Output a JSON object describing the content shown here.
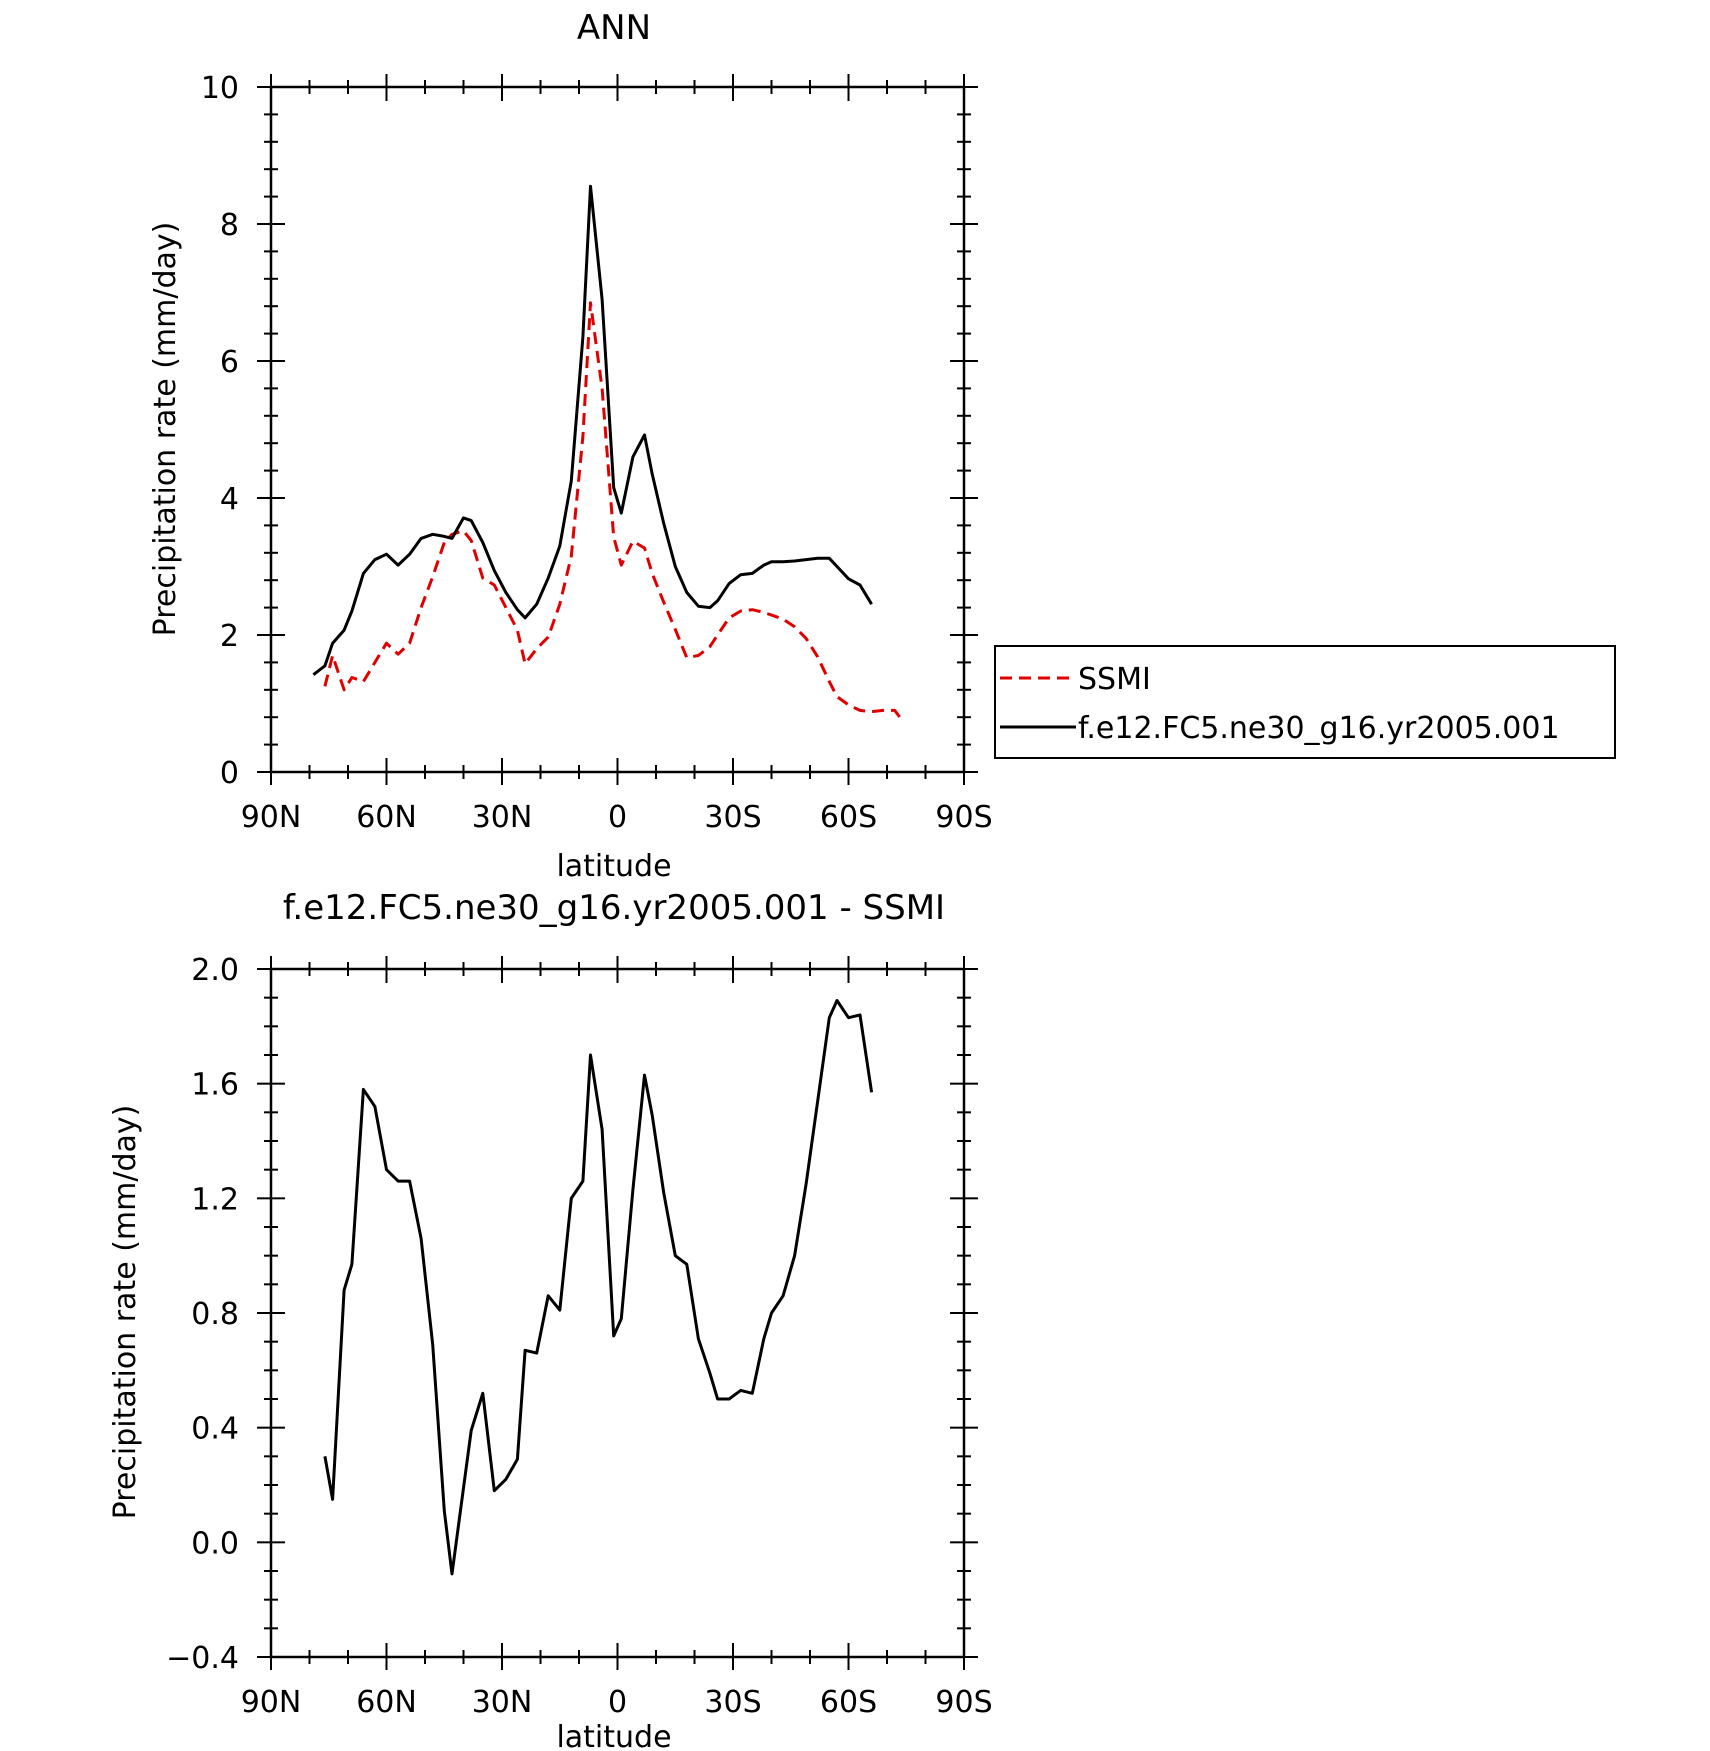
{
  "chart_data": [
    {
      "type": "line",
      "title": "ANN",
      "xlabel": "latitude",
      "ylabel": "Precipitation rate (mm/day)",
      "xlim": [
        90,
        -90
      ],
      "ylim": [
        0,
        10
      ],
      "x_ticks": [
        90,
        60,
        30,
        0,
        -30,
        -60,
        -90
      ],
      "x_tick_labels": [
        "90N",
        "60N",
        "30N",
        "0",
        "30S",
        "60S",
        "90S"
      ],
      "y_ticks": [
        0,
        2,
        4,
        6,
        8,
        10
      ],
      "y_tick_labels": [
        "0",
        "2",
        "4",
        "6",
        "8",
        "10"
      ],
      "grid": false,
      "legend": "right",
      "series": [
        {
          "name": "SSMI",
          "color": "#e00000",
          "dash": "dashed",
          "x": [
            76,
            74,
            71,
            69,
            66,
            63,
            60,
            57,
            54,
            51,
            48,
            45,
            43,
            40,
            38,
            35,
            32,
            29,
            26,
            24,
            21,
            18,
            15,
            12,
            9,
            7,
            4,
            1,
            -1,
            -4,
            -7,
            -9,
            -12,
            -15,
            -18,
            -21,
            -24,
            -26,
            -29,
            -32,
            -35,
            -38,
            -40,
            -43,
            -46,
            -49,
            -52,
            -55,
            -57,
            -60,
            -63,
            -66,
            -69,
            -72,
            -74
          ],
          "y": [
            1.25,
            1.7,
            1.2,
            1.38,
            1.32,
            1.6,
            1.88,
            1.72,
            1.88,
            2.4,
            2.85,
            3.35,
            3.47,
            3.52,
            3.38,
            2.83,
            2.73,
            2.4,
            2.07,
            1.58,
            1.8,
            1.97,
            2.45,
            3.15,
            4.9,
            6.85,
            5.6,
            3.43,
            3.02,
            3.37,
            3.27,
            2.9,
            2.48,
            2.08,
            1.67,
            1.7,
            1.83,
            2.0,
            2.25,
            2.35,
            2.37,
            2.33,
            2.29,
            2.23,
            2.12,
            1.95,
            1.68,
            1.32,
            1.1,
            0.98,
            0.9,
            0.88,
            0.9,
            0.9,
            0.75
          ]
        },
        {
          "name": "f.e12.FC5.ne30_g16.yr2005.001",
          "color": "#000000",
          "dash": "solid",
          "x": [
            79,
            76,
            74,
            71,
            69,
            66,
            63,
            60,
            57,
            54,
            51,
            48,
            45,
            43,
            40,
            38,
            35,
            32,
            29,
            26,
            24,
            21,
            18,
            15,
            12,
            9,
            7,
            4,
            1,
            -1,
            -4,
            -7,
            -9,
            -12,
            -15,
            -18,
            -21,
            -24,
            -26,
            -29,
            -32,
            -35,
            -38,
            -40,
            -43,
            -46,
            -49,
            -52,
            -55,
            -57,
            -60,
            -63,
            -66
          ],
          "y": [
            1.42,
            1.55,
            1.88,
            2.07,
            2.35,
            2.9,
            3.1,
            3.18,
            3.02,
            3.18,
            3.41,
            3.47,
            3.44,
            3.41,
            3.71,
            3.67,
            3.35,
            2.94,
            2.62,
            2.37,
            2.25,
            2.45,
            2.83,
            3.3,
            4.25,
            6.35,
            8.55,
            6.9,
            4.15,
            3.78,
            4.6,
            4.92,
            4.35,
            3.63,
            3.0,
            2.62,
            2.42,
            2.4,
            2.5,
            2.75,
            2.88,
            2.9,
            3.02,
            3.07,
            3.07,
            3.08,
            3.1,
            3.12,
            3.12,
            3.0,
            2.82,
            2.73,
            2.45
          ]
        }
      ]
    },
    {
      "type": "line",
      "title": "f.e12.FC5.ne30_g16.yr2005.001 - SSMI",
      "xlabel": "latitude",
      "ylabel": "Precipitation rate (mm/day)",
      "xlim": [
        90,
        -90
      ],
      "ylim": [
        -0.4,
        2.0
      ],
      "x_ticks": [
        90,
        60,
        30,
        0,
        -30,
        -60,
        -90
      ],
      "x_tick_labels": [
        "90N",
        "60N",
        "30N",
        "0",
        "30S",
        "60S",
        "90S"
      ],
      "y_ticks": [
        -0.4,
        0.0,
        0.4,
        0.8,
        1.2,
        1.6,
        2.0
      ],
      "y_tick_labels": [
        "−0.4",
        "0.0",
        "0.4",
        "0.8",
        "1.2",
        "1.6",
        "2.0"
      ],
      "grid": false,
      "series": [
        {
          "color": "#000000",
          "dash": "solid",
          "x": [
            76,
            74,
            71,
            69,
            66,
            63,
            60,
            57,
            54,
            51,
            48,
            45,
            43,
            40,
            38,
            35,
            32,
            29,
            26,
            24,
            21,
            18,
            15,
            12,
            9,
            7,
            4,
            1,
            -1,
            -4,
            -7,
            -9,
            -12,
            -15,
            -18,
            -21,
            -24,
            -26,
            -29,
            -32,
            -35,
            -38,
            -40,
            -43,
            -46,
            -49,
            -52,
            -55,
            -57,
            -60,
            -63,
            -66
          ],
          "y": [
            0.3,
            0.15,
            0.88,
            0.97,
            1.58,
            1.52,
            1.3,
            1.26,
            1.26,
            1.06,
            0.69,
            0.11,
            -0.11,
            0.19,
            0.39,
            0.52,
            0.18,
            0.22,
            0.29,
            0.67,
            0.66,
            0.86,
            0.81,
            1.2,
            1.26,
            1.7,
            1.44,
            0.72,
            0.78,
            1.23,
            1.63,
            1.49,
            1.22,
            1.0,
            0.97,
            0.71,
            0.59,
            0.5,
            0.5,
            0.53,
            0.52,
            0.71,
            0.8,
            0.86,
            1.0,
            1.25,
            1.54,
            1.83,
            1.89,
            1.83,
            1.84,
            1.57
          ]
        }
      ]
    }
  ]
}
